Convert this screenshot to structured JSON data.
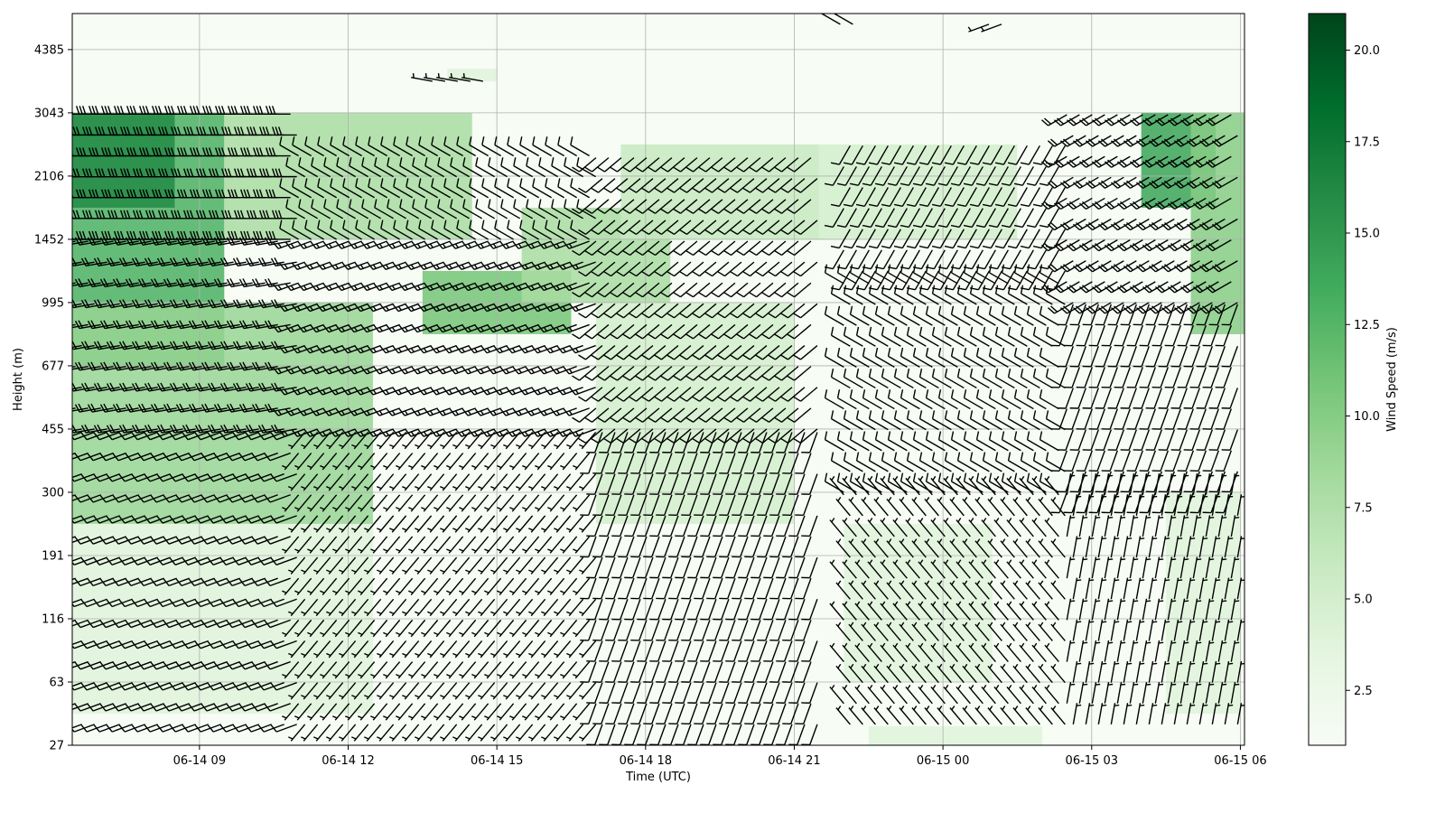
{
  "chart_data": {
    "type": "heatmap",
    "subtype": "wind-profile time-height section with wind barbs",
    "xlabel": "Time (UTC)",
    "ylabel": "Height (m)",
    "colorbar_label": "Wind Speed (m/s)",
    "colormap": "Greens",
    "colormap_stops": [
      "#f7fcf5",
      "#e5f5e0",
      "#c7e9c0",
      "#a1d99b",
      "#74c476",
      "#41ab5d",
      "#238b45",
      "#006d2c",
      "#00441b"
    ],
    "barb_color": "#000000",
    "grid": true,
    "x_range": [
      "06-14 06:26",
      "06-15 06:05"
    ],
    "y_levels_m": [
      27,
      63,
      116,
      191,
      300,
      455,
      677,
      995,
      1452,
      2106,
      3043,
      4385
    ],
    "y_range_m": [
      27,
      5400
    ],
    "x_tick_labels": [
      "06-14 09",
      "06-14 12",
      "06-14 15",
      "06-14 18",
      "06-14 21",
      "06-15 00",
      "06-15 03",
      "06-15 06"
    ],
    "x_tick_hours": [
      9,
      12,
      15,
      18,
      21,
      24,
      27,
      30
    ],
    "y_tick_labels": [
      "27",
      "63",
      "116",
      "191",
      "300",
      "455",
      "677",
      "995",
      "1452",
      "2106",
      "3043",
      "4385"
    ],
    "colorbar_range": [
      1.0,
      21.0
    ],
    "colorbar_ticks": [
      2.5,
      5.0,
      7.5,
      10.0,
      12.5,
      15.0,
      17.5,
      20.0
    ],
    "colorbar_tick_labels": [
      "2.5",
      "5.0",
      "7.5",
      "10.0",
      "12.5",
      "15.0",
      "17.5",
      "20.0"
    ],
    "wind_speed_regions": [
      {
        "from_hour": 6.4,
        "to_hour": 9.5,
        "from_level": 6,
        "to_level": 10,
        "speed_ms": 13
      },
      {
        "from_hour": 6.4,
        "to_hour": 8.5,
        "from_level": 8.5,
        "to_level": 10,
        "speed_ms": 16
      },
      {
        "from_hour": 9.5,
        "to_hour": 14.5,
        "from_level": 8,
        "to_level": 10,
        "speed_ms": 8
      },
      {
        "from_hour": 6.4,
        "to_hour": 12.5,
        "from_level": 3.5,
        "to_level": 7,
        "speed_ms": 9
      },
      {
        "from_hour": 6.4,
        "to_hour": 12.5,
        "from_level": 0.5,
        "to_level": 3.5,
        "speed_ms": 4
      },
      {
        "from_hour": 13.5,
        "to_hour": 16.5,
        "from_level": 6.5,
        "to_level": 7.5,
        "speed_ms": 11
      },
      {
        "from_hour": 15.5,
        "to_hour": 18.5,
        "from_level": 7,
        "to_level": 8.5,
        "speed_ms": 8
      },
      {
        "from_hour": 17.5,
        "to_hour": 21.5,
        "from_level": 8,
        "to_level": 9.5,
        "speed_ms": 6
      },
      {
        "from_hour": 17,
        "to_hour": 21,
        "from_level": 3.5,
        "to_level": 7,
        "speed_ms": 5
      },
      {
        "from_hour": 21.5,
        "to_hour": 25.5,
        "from_level": 8,
        "to_level": 9.5,
        "speed_ms": 5
      },
      {
        "from_hour": 22,
        "to_hour": 25,
        "from_level": 1,
        "to_level": 3.5,
        "speed_ms": 4
      },
      {
        "from_hour": 22.5,
        "to_hour": 26,
        "from_level": -0.3,
        "to_level": 0.3,
        "speed_ms": 4
      },
      {
        "from_hour": 28,
        "to_hour": 29.5,
        "from_level": 8.5,
        "to_level": 10,
        "speed_ms": 14
      },
      {
        "from_hour": 29,
        "to_hour": 30.1,
        "from_level": 6.5,
        "to_level": 10,
        "speed_ms": 10
      },
      {
        "from_hour": 14,
        "to_hour": 15,
        "from_level": 10.5,
        "to_level": 10.7,
        "speed_ms": 4
      },
      {
        "from_hour": 28.5,
        "to_hour": 30,
        "from_level": 0.5,
        "to_level": 4,
        "speed_ms": 4
      }
    ],
    "wind_barbs": [
      {
        "from_hour": 6.5,
        "to_hour": 11,
        "from_level": 0,
        "to_level": 5,
        "direction_deg": 250,
        "speed_ms": 6
      },
      {
        "from_hour": 6.5,
        "to_hour": 11,
        "from_level": 5,
        "to_level": 8,
        "direction_deg": 260,
        "speed_ms": 11
      },
      {
        "from_hour": 6.5,
        "to_hour": 11,
        "from_level": 8,
        "to_level": 10,
        "direction_deg": 270,
        "speed_ms": 16
      },
      {
        "from_hour": 11,
        "to_hour": 17,
        "from_level": 0,
        "to_level": 5,
        "direction_deg": 220,
        "speed_ms": 5
      },
      {
        "from_hour": 11,
        "to_hour": 17,
        "from_level": 5,
        "to_level": 8,
        "direction_deg": 250,
        "speed_ms": 9
      },
      {
        "from_hour": 11,
        "to_hour": 17,
        "from_level": 8,
        "to_level": 9.6,
        "direction_deg": 300,
        "speed_ms": 7
      },
      {
        "from_hour": 17,
        "to_hour": 21.5,
        "from_level": 0,
        "to_level": 5,
        "direction_deg": 200,
        "speed_ms": 6
      },
      {
        "from_hour": 17,
        "to_hour": 21.5,
        "from_level": 5,
        "to_level": 9.6,
        "direction_deg": 230,
        "speed_ms": 7
      },
      {
        "from_hour": 22,
        "to_hour": 26.5,
        "from_level": 0,
        "to_level": 4,
        "direction_deg": 320,
        "speed_ms": 5
      },
      {
        "from_hour": 22,
        "to_hour": 26.5,
        "from_level": 4,
        "to_level": 7.5,
        "direction_deg": 300,
        "speed_ms": 6
      },
      {
        "from_hour": 22,
        "to_hour": 26.5,
        "from_level": 7.5,
        "to_level": 9.5,
        "direction_deg": 210,
        "speed_ms": 6
      },
      {
        "from_hour": 26.5,
        "to_hour": 30,
        "from_level": 0,
        "to_level": 4,
        "direction_deg": 10,
        "speed_ms": 4
      },
      {
        "from_hour": 26.5,
        "to_hour": 30,
        "from_level": 4,
        "to_level": 7,
        "direction_deg": 200,
        "speed_ms": 6
      },
      {
        "from_hour": 26.5,
        "to_hour": 30,
        "from_level": 7,
        "to_level": 10,
        "direction_deg": 240,
        "speed_ms": 12
      },
      {
        "from_hour": 13.7,
        "to_hour": 14.8,
        "from_level": 10.5,
        "to_level": 10.7,
        "direction_deg": 280,
        "speed_ms": 5
      },
      {
        "from_hour": 21.8,
        "to_hour": 22.2,
        "from_level": 11.4,
        "to_level": 11.6,
        "direction_deg": 300,
        "speed_ms": 3
      },
      {
        "from_hour": 24.8,
        "to_hour": 25.3,
        "from_level": 11.4,
        "to_level": 11.6,
        "direction_deg": 250,
        "speed_ms": 3
      }
    ]
  }
}
